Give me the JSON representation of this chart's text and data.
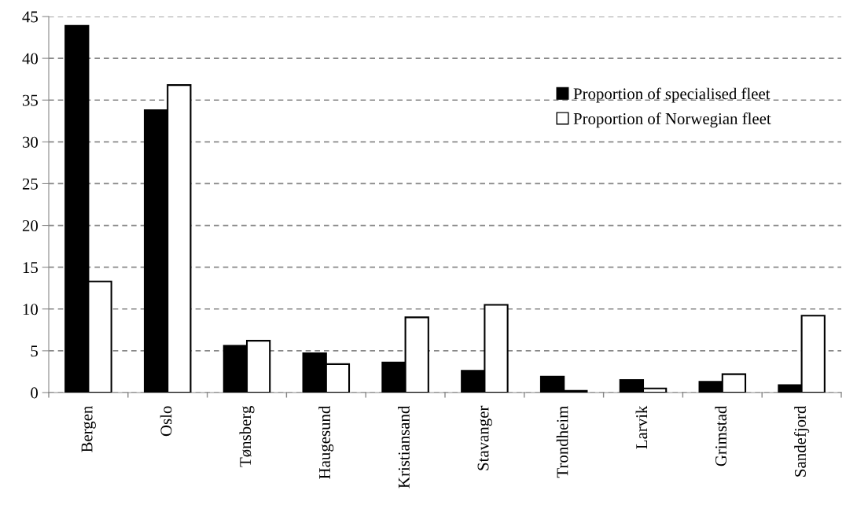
{
  "chart_data": {
    "type": "bar",
    "categories": [
      "Bergen",
      "Oslo",
      "Tønsberg",
      "Haugesund",
      "Kristiansand",
      "Stavanger",
      "Trondheim",
      "Larvik",
      "Grimstad",
      "Sandefjord"
    ],
    "series": [
      {
        "name": "Proportion of specialised fleet",
        "color": "#000000",
        "values": [
          43.9,
          33.8,
          5.6,
          4.7,
          3.6,
          2.6,
          1.9,
          1.5,
          1.3,
          0.9
        ]
      },
      {
        "name": "Proportion of Norwegian fleet",
        "color": "#ffffff",
        "values": [
          13.3,
          36.8,
          6.2,
          3.4,
          9.0,
          10.5,
          0.2,
          0.5,
          2.2,
          9.2
        ]
      }
    ],
    "ylim": [
      0,
      45
    ],
    "yticks": [
      0,
      5,
      10,
      15,
      20,
      25,
      30,
      35,
      40,
      45
    ],
    "grid": "y",
    "legend": "top right"
  }
}
